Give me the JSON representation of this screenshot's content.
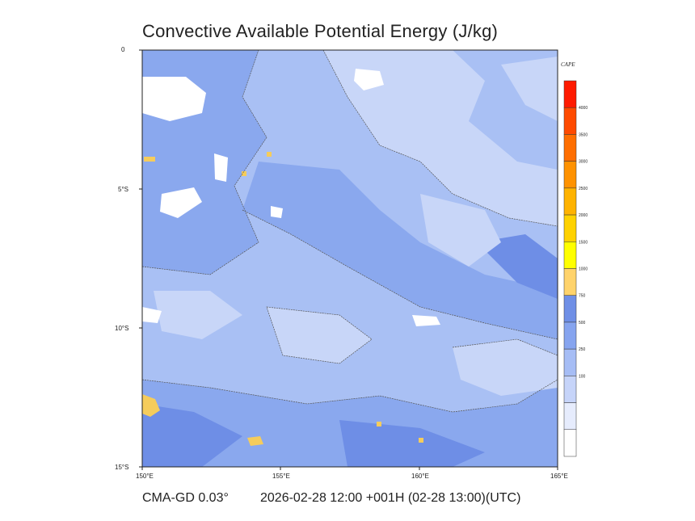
{
  "title": "Convective Available Potential Energy (J/kg)",
  "footer": {
    "model": "CMA-GD 0.03°",
    "time": "2026-02-28 12:00 +001H (02-28 13:00)(UTC)"
  },
  "axes": {
    "y_ticks": [
      "0",
      "5°S",
      "10°S",
      "15°S"
    ],
    "x_ticks": [
      "150°E",
      "155°E",
      "160°E",
      "165°E"
    ]
  },
  "colorbar": {
    "title": "CAPE",
    "labels": [
      "4000",
      "3500",
      "3000",
      "2500",
      "2000",
      "1500",
      "1000",
      "750",
      "500",
      "250",
      "100"
    ],
    "colors": [
      "#ff1a00",
      "#ff4a00",
      "#ff6e00",
      "#ff9200",
      "#ffb300",
      "#ffd200",
      "#ffff00",
      "#ffd36b",
      "#6f8fe6",
      "#86a4ef",
      "#a6bdf5",
      "#c6d4f9",
      "#e6ecfd",
      "#ffffff"
    ]
  },
  "colors": {
    "cape_100_250": "#c8d6f8",
    "cape_250_500": "#a9c0f4",
    "cape_500_750": "#8aa8ee",
    "cape_750_1000": "#6e8ee6",
    "cape_1000_1500": "#f5cc5c",
    "land_low": "#ffffff"
  }
}
